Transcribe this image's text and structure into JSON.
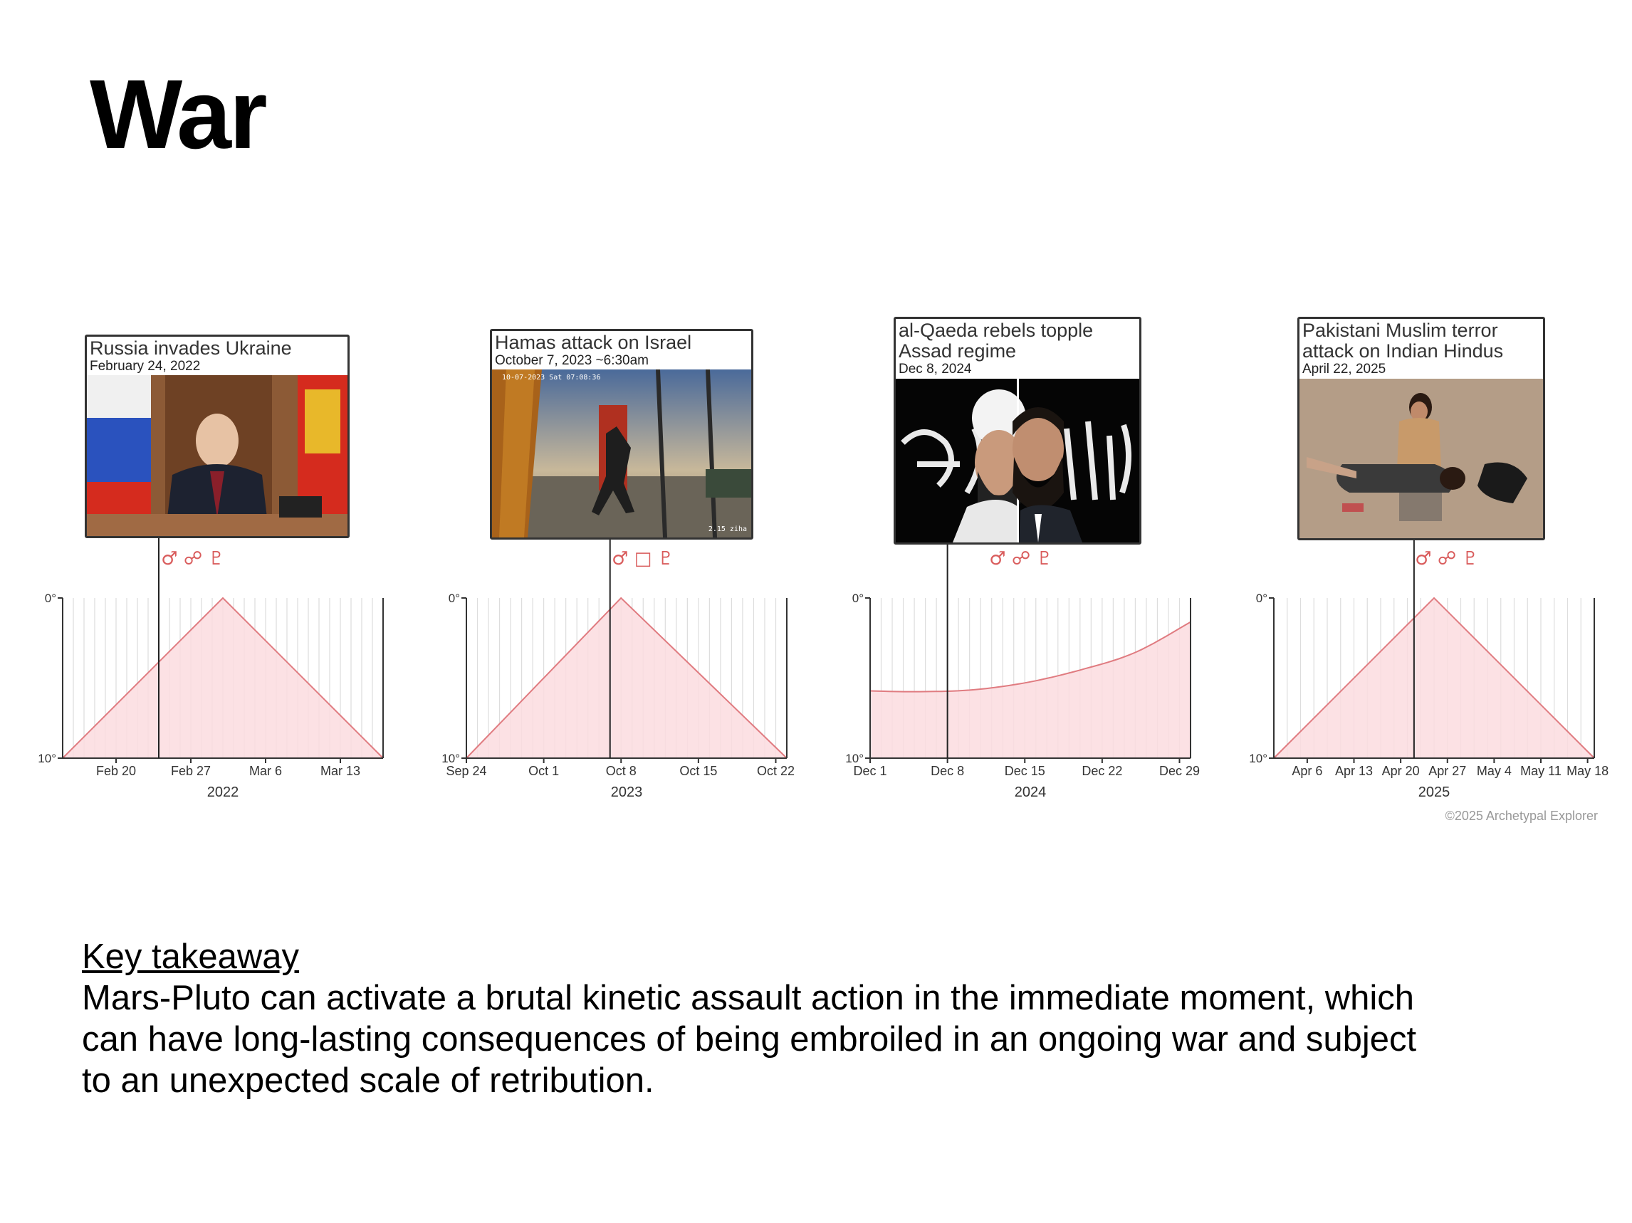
{
  "page": {
    "title": "War",
    "copyright": "©2025 Archetypal Explorer",
    "takeaway": {
      "heading": "Key takeaway",
      "body": "Mars-Pluto can activate a brutal kinetic assault action in the immediate moment, which can have long-lasting consequences of being embroiled in an ongoing war and subject to an unexpected scale of retribution."
    }
  },
  "colors": {
    "curve_fill": "#fbdcdf",
    "curve_line": "#e07b80",
    "symbol": "#d95c5c",
    "grid": "#dddddd",
    "axis": "#333333"
  },
  "events": [
    {
      "title": "Russia invades Ukraine",
      "date": "February 24, 2022",
      "symbols": "♂ ☍ ♇",
      "image": "photo-speech-flags"
    },
    {
      "title": "Hamas attack on Israel",
      "date": "October 7, 2023 ~6:30am",
      "symbols": "♂ □ ♇",
      "image": "photo-security-camera",
      "image_overlay_top": "10-07-2023 Sat 07:08:36",
      "image_overlay_bottom": "2.15 ziha"
    },
    {
      "title": "al-Qaeda rebels topple Assad regime",
      "date": "Dec 8, 2024",
      "symbols": "♂ ☍ ♇",
      "image": "photo-split-portrait-black-banner"
    },
    {
      "title": "Pakistani Muslim terror attack on Indian Hindus",
      "date": "April 22, 2025",
      "symbols": "♂ ☍ ♇",
      "image": "photo-victims-on-ground"
    }
  ],
  "chart_data": [
    {
      "type": "area",
      "x": [
        "2022-02-15",
        "2022-03-02",
        "2022-03-17"
      ],
      "y": [
        10,
        0,
        10
      ],
      "event_date": "2022-02-24",
      "x_ticks": [
        "Feb 20",
        "Feb 27",
        "Mar 6",
        "Mar 13"
      ],
      "year_label": "2022",
      "y_tick_labels": [
        "0°",
        "10°"
      ],
      "ylim": [
        0,
        10
      ],
      "y_inverted": true,
      "grid": "vertical-daily"
    },
    {
      "type": "area",
      "x": [
        "2023-09-24",
        "2023-10-08",
        "2023-10-23"
      ],
      "y": [
        10,
        0,
        10
      ],
      "event_date": "2023-10-07",
      "x_ticks": [
        "Sep 24",
        "Oct 1",
        "Oct 8",
        "Oct 15",
        "Oct 22"
      ],
      "year_label": "2023",
      "y_tick_labels": [
        "0°",
        "10°"
      ],
      "ylim": [
        0,
        10
      ],
      "y_inverted": true,
      "grid": "vertical-daily"
    },
    {
      "type": "area",
      "x": [
        "2024-12-01",
        "2024-12-05",
        "2024-12-10",
        "2024-12-15",
        "2024-12-20",
        "2024-12-25",
        "2024-12-30"
      ],
      "y": [
        5.8,
        5.85,
        5.75,
        5.3,
        4.5,
        3.4,
        1.5
      ],
      "event_date": "2024-12-08",
      "x_ticks": [
        "Dec 1",
        "Dec 8",
        "Dec 15",
        "Dec 22",
        "Dec 29"
      ],
      "year_label": "2024",
      "y_tick_labels": [
        "0°",
        "10°"
      ],
      "ylim": [
        0,
        10
      ],
      "y_inverted": true,
      "grid": "vertical-daily"
    },
    {
      "type": "area",
      "x": [
        "2025-04-01",
        "2025-04-25",
        "2025-05-19"
      ],
      "y": [
        10,
        0,
        10
      ],
      "event_date": "2025-04-22",
      "x_ticks": [
        "Apr 6",
        "Apr 13",
        "Apr 20",
        "Apr 27",
        "May 4",
        "May 11",
        "May 18"
      ],
      "year_label": "2025",
      "y_tick_labels": [
        "0°",
        "10°"
      ],
      "ylim": [
        0,
        10
      ],
      "y_inverted": true,
      "grid": "vertical-every-two-days"
    }
  ]
}
